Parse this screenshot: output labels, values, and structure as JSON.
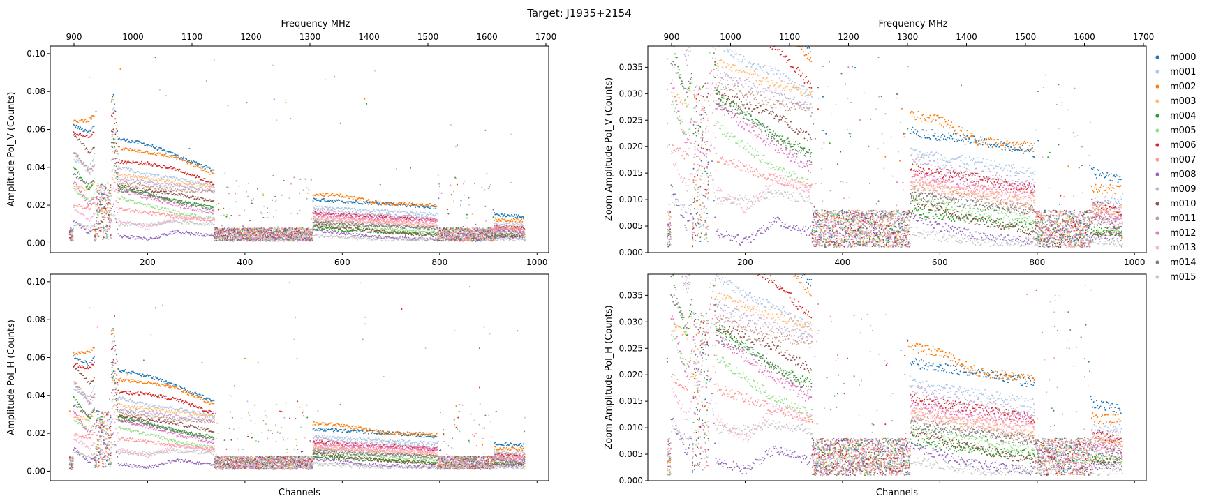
{
  "title": "Target: J1935+2154",
  "legend": {
    "placement": "right",
    "entries": [
      "m000",
      "m001",
      "m002",
      "m003",
      "m004",
      "m005",
      "m006",
      "m007",
      "m008",
      "m009",
      "m010",
      "m011",
      "m012",
      "m013",
      "m014",
      "m015"
    ],
    "colors": [
      "#1f77b4",
      "#aec7e8",
      "#ff7f0e",
      "#ffbb78",
      "#2ca02c",
      "#98df8a",
      "#d62728",
      "#ff9896",
      "#9467bd",
      "#c5b0d5",
      "#8c564b",
      "#c49c94",
      "#e377c2",
      "#f7b6d2",
      "#7f7f7f",
      "#c7c7c7"
    ]
  },
  "chart_data": [
    {
      "type": "scatter",
      "position": "top-left",
      "ylabel": "Amplitude Pol_V (Counts)",
      "xlabel": "",
      "top_axis_label": "Frequency MHz",
      "xlim": [
        0,
        1024
      ],
      "ylim": [
        -0.005,
        0.104
      ],
      "xticks": [
        200,
        400,
        600,
        800,
        1000
      ],
      "xtick_labels": [
        "200",
        "400",
        "600",
        "800",
        "1000"
      ],
      "yticks": [
        0,
        0.02,
        0.04,
        0.06,
        0.08,
        0.1
      ],
      "ytick_labels": [
        "0.00",
        "0.02",
        "0.04",
        "0.06",
        "0.08",
        "0.10"
      ],
      "top_ticks": [
        900,
        1000,
        1100,
        1200,
        1300,
        1400,
        1500,
        1600,
        1700
      ],
      "top_tick_labels": [
        "900",
        "1000",
        "1100",
        "1200",
        "1300",
        "1400",
        "1500",
        "1600",
        "1700"
      ],
      "amp_scale": 1.0,
      "series": [
        {
          "name": "m000",
          "values": [
            [
              50,
              0.062
            ],
            [
              80,
              0.058
            ],
            [
              130,
              0.078
            ],
            [
              140,
              0.055
            ],
            [
              200,
              0.052
            ],
            [
              260,
              0.046
            ],
            [
              330,
              0.039
            ],
            [
              540,
              0.023
            ],
            [
              600,
              0.022
            ],
            [
              680,
              0.021
            ],
            [
              790,
              0.019
            ],
            [
              920,
              0.015
            ],
            [
              970,
              0.014
            ]
          ]
        },
        {
          "name": "m001",
          "values": [
            [
              50,
              0.044
            ],
            [
              80,
              0.04
            ],
            [
              130,
              0.072
            ],
            [
              140,
              0.04
            ],
            [
              200,
              0.036
            ],
            [
              260,
              0.034
            ],
            [
              330,
              0.03
            ],
            [
              540,
              0.019
            ],
            [
              600,
              0.018
            ],
            [
              680,
              0.017
            ],
            [
              790,
              0.015
            ],
            [
              920,
              0.01
            ],
            [
              970,
              0.01
            ]
          ]
        },
        {
          "name": "m002",
          "values": [
            [
              50,
              0.064
            ],
            [
              80,
              0.065
            ],
            [
              130,
              0.076
            ],
            [
              140,
              0.05
            ],
            [
              200,
              0.048
            ],
            [
              260,
              0.045
            ],
            [
              330,
              0.037
            ],
            [
              540,
              0.026
            ],
            [
              600,
              0.025
            ],
            [
              680,
              0.021
            ],
            [
              790,
              0.02
            ],
            [
              920,
              0.012
            ],
            [
              970,
              0.012
            ]
          ]
        },
        {
          "name": "m003",
          "values": [
            [
              50,
              0.03
            ],
            [
              80,
              0.028
            ],
            [
              130,
              0.05
            ],
            [
              140,
              0.036
            ],
            [
              200,
              0.034
            ],
            [
              260,
              0.032
            ],
            [
              330,
              0.03
            ],
            [
              540,
              0.013
            ],
            [
              600,
              0.012
            ],
            [
              680,
              0.011
            ],
            [
              790,
              0.009
            ],
            [
              920,
              0.008
            ],
            [
              970,
              0.008
            ]
          ]
        },
        {
          "name": "m004",
          "values": [
            [
              50,
              0.04
            ],
            [
              80,
              0.028
            ],
            [
              130,
              0.055
            ],
            [
              140,
              0.03
            ],
            [
              200,
              0.026
            ],
            [
              260,
              0.022
            ],
            [
              330,
              0.019
            ],
            [
              540,
              0.008
            ],
            [
              600,
              0.007
            ],
            [
              680,
              0.006
            ],
            [
              790,
              0.005
            ],
            [
              920,
              0.004
            ],
            [
              970,
              0.004
            ]
          ]
        },
        {
          "name": "m005",
          "values": [
            [
              50,
              0.028
            ],
            [
              80,
              0.022
            ],
            [
              130,
              0.04
            ],
            [
              140,
              0.024
            ],
            [
              200,
              0.02
            ],
            [
              260,
              0.016
            ],
            [
              330,
              0.013
            ],
            [
              540,
              0.01
            ],
            [
              600,
              0.009
            ],
            [
              680,
              0.008
            ],
            [
              790,
              0.006
            ],
            [
              920,
              0.004
            ],
            [
              970,
              0.004
            ]
          ]
        },
        {
          "name": "m006",
          "values": [
            [
              50,
              0.058
            ],
            [
              80,
              0.056
            ],
            [
              130,
              0.068
            ],
            [
              140,
              0.043
            ],
            [
              200,
              0.042
            ],
            [
              260,
              0.039
            ],
            [
              330,
              0.032
            ],
            [
              540,
              0.016
            ],
            [
              600,
              0.015
            ],
            [
              680,
              0.014
            ],
            [
              790,
              0.012
            ],
            [
              920,
              0.009
            ],
            [
              970,
              0.008
            ]
          ]
        },
        {
          "name": "m007",
          "values": [
            [
              50,
              0.02
            ],
            [
              80,
              0.018
            ],
            [
              130,
              0.035
            ],
            [
              140,
              0.018
            ],
            [
              200,
              0.016
            ],
            [
              260,
              0.014
            ],
            [
              330,
              0.012
            ],
            [
              540,
              0.014
            ],
            [
              600,
              0.013
            ],
            [
              680,
              0.012
            ],
            [
              790,
              0.011
            ],
            [
              920,
              0.008
            ],
            [
              970,
              0.007
            ]
          ]
        },
        {
          "name": "m008",
          "values": [
            [
              50,
              0.012
            ],
            [
              80,
              0.005
            ],
            [
              130,
              0.02
            ],
            [
              140,
              0.004
            ],
            [
              200,
              0.002
            ],
            [
              260,
              0.006
            ],
            [
              330,
              0.004
            ],
            [
              540,
              0.007
            ],
            [
              600,
              0.005
            ],
            [
              680,
              0.003
            ],
            [
              790,
              0.002
            ],
            [
              920,
              0.003
            ],
            [
              970,
              0.003
            ]
          ]
        },
        {
          "name": "m009",
          "values": [
            [
              50,
              0.047
            ],
            [
              80,
              0.036
            ],
            [
              130,
              0.06
            ],
            [
              140,
              0.034
            ],
            [
              200,
              0.032
            ],
            [
              260,
              0.03
            ],
            [
              330,
              0.028
            ],
            [
              540,
              0.018
            ],
            [
              600,
              0.016
            ],
            [
              680,
              0.015
            ],
            [
              790,
              0.013
            ],
            [
              920,
              0.009
            ],
            [
              970,
              0.009
            ]
          ]
        },
        {
          "name": "m010",
          "values": [
            [
              50,
              0.057
            ],
            [
              80,
              0.048
            ],
            [
              130,
              0.06
            ],
            [
              140,
              0.03
            ],
            [
              200,
              0.028
            ],
            [
              260,
              0.026
            ],
            [
              330,
              0.022
            ],
            [
              540,
              0.01
            ],
            [
              600,
              0.008
            ],
            [
              680,
              0.006
            ],
            [
              790,
              0.004
            ],
            [
              920,
              0.004
            ],
            [
              970,
              0.004
            ]
          ]
        },
        {
          "name": "m011",
          "values": [
            [
              50,
              0.048
            ],
            [
              80,
              0.038
            ],
            [
              130,
              0.058
            ],
            [
              140,
              0.032
            ],
            [
              200,
              0.03
            ],
            [
              260,
              0.028
            ],
            [
              330,
              0.027
            ],
            [
              540,
              0.012
            ],
            [
              600,
              0.011
            ],
            [
              680,
              0.01
            ],
            [
              790,
              0.008
            ],
            [
              920,
              0.007
            ],
            [
              970,
              0.007
            ]
          ]
        },
        {
          "name": "m012",
          "values": [
            [
              50,
              0.032
            ],
            [
              80,
              0.02
            ],
            [
              130,
              0.045
            ],
            [
              140,
              0.028
            ],
            [
              200,
              0.024
            ],
            [
              260,
              0.02
            ],
            [
              330,
              0.016
            ],
            [
              540,
              0.015
            ],
            [
              600,
              0.014
            ],
            [
              680,
              0.013
            ],
            [
              790,
              0.012
            ],
            [
              920,
              0.007
            ],
            [
              970,
              0.006
            ]
          ]
        },
        {
          "name": "m013",
          "values": [
            [
              50,
              0.018
            ],
            [
              80,
              0.012
            ],
            [
              130,
              0.03
            ],
            [
              140,
              0.012
            ],
            [
              200,
              0.008
            ],
            [
              260,
              0.014
            ],
            [
              330,
              0.012
            ],
            [
              540,
              0.013
            ],
            [
              600,
              0.012
            ],
            [
              680,
              0.011
            ],
            [
              790,
              0.01
            ],
            [
              920,
              0.006
            ],
            [
              970,
              0.005
            ]
          ]
        },
        {
          "name": "m014",
          "values": [
            [
              50,
              0.036
            ],
            [
              80,
              0.03
            ],
            [
              130,
              0.052
            ],
            [
              140,
              0.028
            ],
            [
              200,
              0.026
            ],
            [
              260,
              0.022
            ],
            [
              330,
              0.018
            ],
            [
              540,
              0.011
            ],
            [
              600,
              0.01
            ],
            [
              680,
              0.009
            ],
            [
              790,
              0.008
            ],
            [
              920,
              0.006
            ],
            [
              970,
              0.005
            ]
          ]
        },
        {
          "name": "m015",
          "values": [
            [
              50,
              0.01
            ],
            [
              80,
              0.008
            ],
            [
              130,
              0.015
            ],
            [
              140,
              0.01
            ],
            [
              200,
              0.01
            ],
            [
              260,
              0.011
            ],
            [
              330,
              0.01
            ],
            [
              540,
              0.004
            ],
            [
              600,
              0.003
            ],
            [
              680,
              0.002
            ],
            [
              790,
              0.002
            ],
            [
              920,
              0.002
            ],
            [
              970,
              0.002
            ]
          ]
        }
      ]
    },
    {
      "type": "scatter",
      "position": "top-right",
      "ylabel": "Zoom Amplitude Pol_V (Counts)",
      "xlabel": "",
      "top_axis_label": "Frequency MHz",
      "xlim": [
        0,
        1024
      ],
      "ylim": [
        0,
        0.039
      ],
      "xticks": [
        200,
        400,
        600,
        800,
        1000
      ],
      "xtick_labels": [
        "200",
        "400",
        "600",
        "800",
        "1000"
      ],
      "yticks": [
        0,
        0.005,
        0.01,
        0.015,
        0.02,
        0.025,
        0.03,
        0.035
      ],
      "ytick_labels": [
        "0.000",
        "0.005",
        "0.010",
        "0.015",
        "0.020",
        "0.025",
        "0.030",
        "0.035"
      ],
      "top_ticks": [
        900,
        1000,
        1100,
        1200,
        1300,
        1400,
        1500,
        1600,
        1700
      ],
      "top_tick_labels": [
        "900",
        "1000",
        "1100",
        "1200",
        "1300",
        "1400",
        "1500",
        "1600",
        "1700"
      ],
      "amp_scale": 1.0,
      "series_ref": "same as top-left panel"
    },
    {
      "type": "scatter",
      "position": "bottom-left",
      "ylabel": "Amplitude Pol_H (Counts)",
      "xlabel": "Channels",
      "xlim": [
        0,
        1024
      ],
      "ylim": [
        -0.005,
        0.104
      ],
      "xticks": [
        200,
        400,
        600,
        800,
        1000
      ],
      "xtick_labels": [],
      "yticks": [
        0,
        0.02,
        0.04,
        0.06,
        0.08,
        0.1
      ],
      "ytick_labels": [
        "0.00",
        "0.02",
        "0.04",
        "0.06",
        "0.08",
        "0.10"
      ],
      "amp_scale": 0.97
    },
    {
      "type": "scatter",
      "position": "bottom-right",
      "ylabel": "Zoom Amplitude Pol_H (Counts)",
      "xlabel": "Channels",
      "xlim": [
        0,
        1024
      ],
      "ylim": [
        0,
        0.039
      ],
      "xticks": [
        200,
        400,
        600,
        800,
        1000
      ],
      "xtick_labels": [],
      "yticks": [
        0,
        0.005,
        0.01,
        0.015,
        0.02,
        0.025,
        0.03,
        0.035
      ],
      "ytick_labels": [
        "0.000",
        "0.005",
        "0.010",
        "0.015",
        "0.020",
        "0.025",
        "0.030",
        "0.035"
      ],
      "amp_scale": 0.97
    }
  ]
}
